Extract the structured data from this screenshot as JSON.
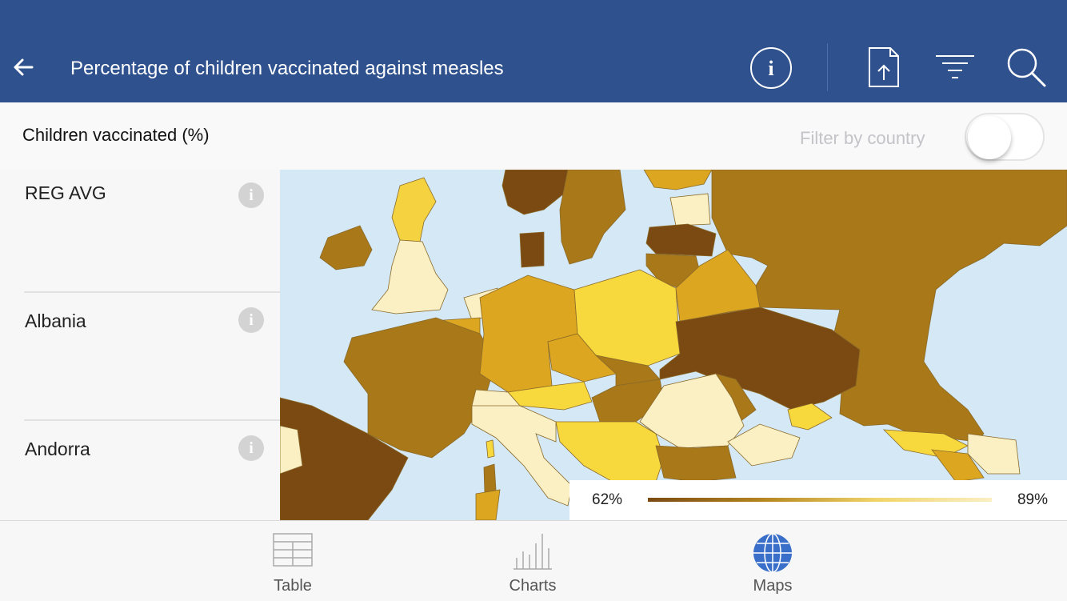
{
  "header": {
    "title": "Percentage of children vaccinated against measles",
    "icons": [
      "back-arrow-icon",
      "info-icon",
      "share-icon",
      "filter-icon",
      "search-icon"
    ]
  },
  "subbar": {
    "label": "Children vaccinated (%)",
    "filter_label": "Filter by country",
    "filter_enabled": false
  },
  "list": {
    "items": [
      {
        "label": "REG AVG"
      },
      {
        "label": "Albania"
      },
      {
        "label": "Andorra"
      }
    ]
  },
  "legend": {
    "min": "62%",
    "max": "89%",
    "colors": [
      "#7a4a12",
      "#b58520",
      "#f0d46a",
      "#fbefc4"
    ]
  },
  "tabs": [
    {
      "label": "Table",
      "icon": "table-icon",
      "active": false
    },
    {
      "label": "Charts",
      "icon": "bar-chart-icon",
      "active": false
    },
    {
      "label": "Maps",
      "icon": "globe-icon",
      "active": true
    }
  ],
  "colors": {
    "header": "#2f528f",
    "active_tab": "#3a6fc9",
    "sea": "#d4e8f5"
  }
}
